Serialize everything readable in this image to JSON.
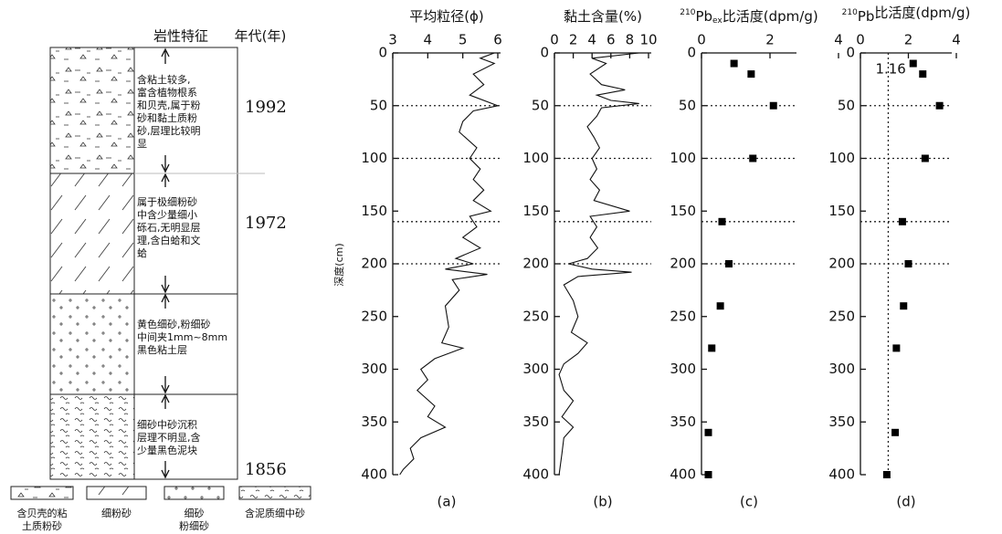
{
  "lithology": {
    "header": "岩性特征",
    "age_header": "年代(年)",
    "layers": [
      {
        "lines": [
          "含粘土较多,",
          "富含植物根系",
          "和贝壳,属于粉",
          "砂和黏土质粉",
          "砂,层理比较明",
          "显"
        ]
      },
      {
        "lines": [
          "属于极细粉砂",
          "中含少量细小",
          "砾石,无明显层",
          "理,含白蛤和文",
          "蛤"
        ]
      },
      {
        "lines": [
          "黄色细砂,粉细砂",
          "中间夹1mm~8mm",
          "黑色粘土层"
        ]
      },
      {
        "lines": [
          "细砂中砂沉积",
          "层理不明显,含",
          "少量黑色泥块"
        ]
      }
    ],
    "ages": [
      "1992",
      "1972",
      "1856"
    ],
    "legend": [
      {
        "lines": [
          "含贝壳的粘",
          "土质粉砂"
        ]
      },
      {
        "lines": [
          "细粉砂"
        ]
      },
      {
        "lines": [
          "细砂",
          "粉细砂"
        ]
      },
      {
        "lines": [
          "含泥质细中砂"
        ]
      }
    ]
  },
  "depth_label": "深度(cm)",
  "chart_data": [
    {
      "type": "line",
      "title": "平均粒径(ϕ)",
      "panel_label": "(a)",
      "xlim": [
        3,
        6
      ],
      "xticks": [
        3,
        4,
        5,
        6
      ],
      "ylim": [
        0,
        400
      ],
      "yticks": [
        0,
        50,
        100,
        150,
        200,
        250,
        300,
        350,
        400
      ],
      "ref_depths": [
        50,
        100,
        160,
        200
      ],
      "color": "#111111",
      "depth": [
        0,
        5,
        10,
        20,
        30,
        40,
        50,
        55,
        65,
        75,
        90,
        100,
        110,
        120,
        130,
        140,
        150,
        155,
        165,
        175,
        185,
        195,
        200,
        205,
        210,
        215,
        225,
        240,
        260,
        275,
        280,
        290,
        300,
        310,
        320,
        335,
        345,
        355,
        365,
        375,
        385,
        395,
        400
      ],
      "values": [
        5.9,
        5.5,
        5.9,
        5.3,
        5.6,
        5.2,
        6.0,
        5.3,
        5.0,
        4.9,
        5.4,
        5.2,
        5.5,
        5.3,
        5.6,
        5.3,
        5.8,
        5.2,
        5.4,
        5.0,
        5.5,
        4.8,
        5.3,
        4.5,
        5.7,
        4.7,
        4.9,
        4.5,
        4.6,
        4.4,
        5.0,
        4.2,
        3.8,
        4.0,
        3.7,
        4.2,
        4.0,
        4.5,
        3.8,
        3.5,
        3.6,
        3.3,
        3.2
      ]
    },
    {
      "type": "line",
      "title": "黏土含量(%)",
      "panel_label": "(b)",
      "xlim": [
        0,
        10
      ],
      "xticks": [
        0,
        2,
        4,
        6,
        8,
        10
      ],
      "ylim": [
        0,
        400
      ],
      "yticks": [
        0,
        50,
        100,
        150,
        200,
        250,
        300,
        350,
        400
      ],
      "ref_depths": [
        50,
        100,
        160,
        200
      ],
      "color": "#111111",
      "depth": [
        0,
        5,
        10,
        20,
        30,
        35,
        40,
        45,
        48,
        52,
        60,
        70,
        80,
        90,
        100,
        110,
        120,
        130,
        140,
        150,
        155,
        165,
        175,
        185,
        195,
        200,
        205,
        208,
        212,
        220,
        235,
        250,
        265,
        275,
        285,
        295,
        305,
        320,
        330,
        345,
        355,
        365,
        380,
        400
      ],
      "values": [
        9,
        4,
        5.5,
        3.8,
        5,
        7.5,
        4.5,
        6,
        9,
        5,
        4.5,
        3.5,
        4.2,
        4.8,
        4.0,
        4.5,
        3.8,
        4.8,
        4.2,
        8.0,
        3.8,
        4.5,
        3.8,
        4.6,
        3.5,
        1.5,
        4.0,
        8.2,
        2.5,
        1.0,
        2.0,
        2.5,
        1.8,
        3.5,
        2.5,
        1.0,
        0.5,
        1.0,
        2.0,
        0.8,
        2.0,
        1.0,
        0.8,
        0.5
      ]
    },
    {
      "type": "scatter",
      "title_sup": "210",
      "title": "Pb",
      "title_sub": "ex",
      "title_rest": "比活度(dpm/g)",
      "panel_label": "(c)",
      "xlim": [
        0,
        4
      ],
      "xticks": [
        0,
        2,
        4
      ],
      "ylim": [
        0,
        400
      ],
      "yticks": [
        0,
        50,
        100,
        150,
        200,
        250,
        300,
        350,
        400
      ],
      "ref_depths": [
        50,
        100,
        160,
        200
      ],
      "color": "#000000",
      "depth": [
        10,
        20,
        50,
        100,
        160,
        200,
        240,
        280,
        360,
        400
      ],
      "values": [
        0.95,
        1.45,
        2.1,
        1.5,
        0.6,
        0.8,
        0.55,
        0.3,
        0.2,
        0.2
      ]
    },
    {
      "type": "scatter",
      "title_sup": "210",
      "title": "Pb",
      "title_rest": "比活度(dpm/g)",
      "panel_label": "(d)",
      "xlim": [
        0,
        4
      ],
      "xticks": [
        0,
        2,
        4
      ],
      "ylim": [
        0,
        400
      ],
      "yticks": [
        0,
        50,
        100,
        150,
        200,
        250,
        300,
        350,
        400
      ],
      "ref_depths": [
        50,
        100,
        160,
        200
      ],
      "ref_value": 1.16,
      "color": "#000000",
      "depth": [
        10,
        20,
        50,
        100,
        160,
        200,
        240,
        280,
        360,
        400
      ],
      "values": [
        2.2,
        2.6,
        3.3,
        2.7,
        1.75,
        2.0,
        1.8,
        1.5,
        1.45,
        1.1
      ]
    }
  ]
}
